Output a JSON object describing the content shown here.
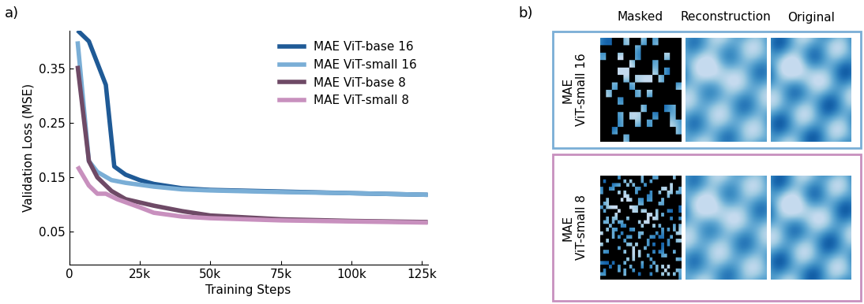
{
  "chart_data": {
    "type": "line",
    "x_label": "Training Steps",
    "y_label": "Validation Loss (MSE)",
    "xlim": [
      0,
      127000
    ],
    "ylim": [
      -0.01,
      0.42
    ],
    "xticks": [
      {
        "value": 0,
        "label": "0"
      },
      {
        "value": 25000,
        "label": "25k"
      },
      {
        "value": 50000,
        "label": "50k"
      },
      {
        "value": 75000,
        "label": "75k"
      },
      {
        "value": 100000,
        "label": "100k"
      },
      {
        "value": 125000,
        "label": "125k"
      }
    ],
    "yticks": [
      0.05,
      0.15,
      0.25,
      0.35
    ],
    "grid": false,
    "legend": "upper right",
    "series": [
      {
        "name": "MAE ViT-base 16",
        "color": "#1f5a96",
        "x": [
          3000,
          7000,
          13000,
          16000,
          20000,
          25000,
          30000,
          40000,
          50000,
          75000,
          100000,
          127000
        ],
        "values": [
          0.42,
          0.4,
          0.32,
          0.17,
          0.155,
          0.145,
          0.138,
          0.13,
          0.127,
          0.124,
          0.121,
          0.118
        ]
      },
      {
        "name": "MAE ViT-small 16",
        "color": "#7aaed6",
        "x": [
          3000,
          7000,
          10000,
          15000,
          20000,
          30000,
          40000,
          50000,
          75000,
          100000,
          127000
        ],
        "values": [
          0.4,
          0.18,
          0.16,
          0.145,
          0.14,
          0.133,
          0.128,
          0.126,
          0.123,
          0.121,
          0.118
        ]
      },
      {
        "name": "MAE ViT-base 8",
        "color": "#6e4a66",
        "x": [
          3000,
          7000,
          10000,
          15000,
          20000,
          30000,
          40000,
          50000,
          75000,
          100000,
          127000
        ],
        "values": [
          0.355,
          0.18,
          0.15,
          0.125,
          0.11,
          0.098,
          0.088,
          0.08,
          0.073,
          0.07,
          0.068
        ]
      },
      {
        "name": "MAE ViT-small 8",
        "color": "#c890be",
        "x": [
          3000,
          7000,
          10000,
          13000,
          17000,
          25000,
          30000,
          40000,
          50000,
          75000,
          100000,
          127000
        ],
        "values": [
          0.17,
          0.135,
          0.12,
          0.12,
          0.11,
          0.095,
          0.085,
          0.078,
          0.075,
          0.071,
          0.069,
          0.067
        ]
      }
    ]
  },
  "panels": {
    "a": "a)",
    "b": {
      "label": "b)",
      "columns": [
        "Masked",
        "Reconstruction",
        "Original"
      ],
      "rows": [
        {
          "label": "MAE\nViT-small 16",
          "color": "#7aaed6"
        },
        {
          "label": "MAE\nViT-small 8",
          "color": "#c890be"
        }
      ]
    }
  }
}
